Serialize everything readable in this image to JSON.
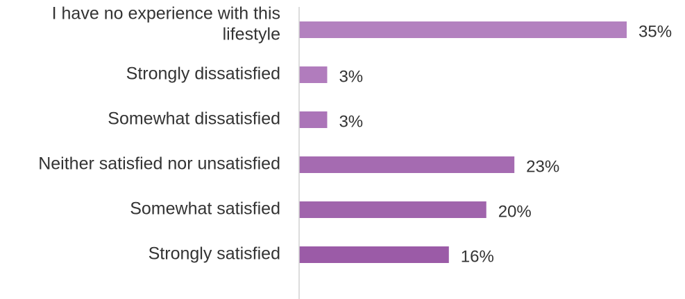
{
  "chart_data": {
    "type": "bar",
    "orientation": "horizontal",
    "categories": [
      [
        "I have no experience with this",
        "lifestyle"
      ],
      [
        "Strongly dissatisfied"
      ],
      [
        "Somewhat dissatisfied"
      ],
      [
        "Neither satisfied nor unsatisfied"
      ],
      [
        "Somewhat satisfied"
      ],
      [
        "Strongly satisfied"
      ]
    ],
    "values": [
      35,
      3,
      3,
      23,
      20,
      16
    ],
    "value_labels": [
      "35%",
      "3%",
      "3%",
      "23%",
      "20%",
      "16%"
    ],
    "unit": "%",
    "title": "",
    "xlabel": "",
    "ylabel": "",
    "xlim": [
      0,
      35
    ],
    "grid": false,
    "legend": "none",
    "bar_colors": [
      "#b381bf",
      "#b17cbd",
      "#ab74b8",
      "#a56bb1",
      "#a064ac",
      "#9b5ba7"
    ],
    "axis_color": "#d0d0d0"
  }
}
